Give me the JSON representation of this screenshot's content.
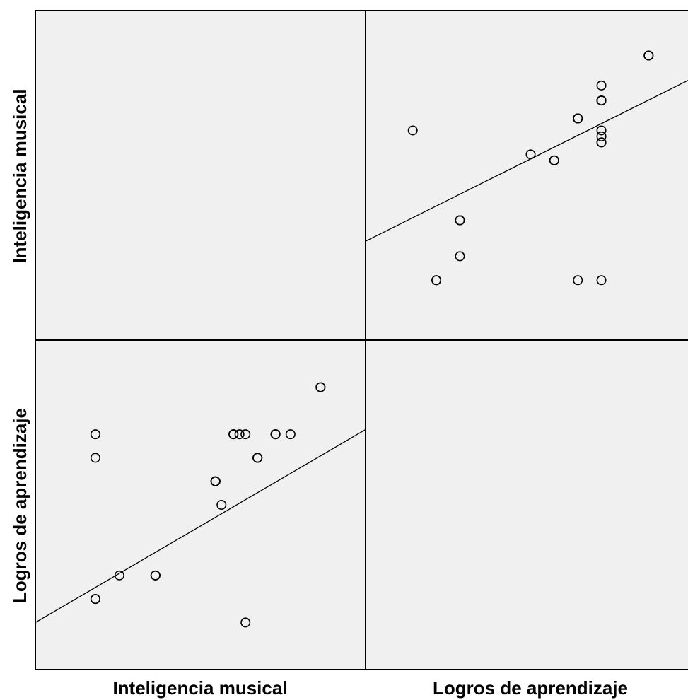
{
  "chart_data": {
    "type": "scatter",
    "variables": [
      "Inteligencia musical",
      "Logros de aprendizaje"
    ],
    "grid": false,
    "colors": {
      "panel_background": "#f0f0f0",
      "marker_stroke": "#000000",
      "fit_line": "#000000"
    },
    "axis_ranges": {
      "Inteligencia musical": [
        -2,
        9
      ],
      "Logros de aprendizaje": [
        -2,
        12
      ]
    },
    "points": [
      {
        "Inteligencia musical": 0,
        "Logros de aprendizaje": 1
      },
      {
        "Inteligencia musical": 0,
        "Logros de aprendizaje": 1
      },
      {
        "Inteligencia musical": 0.8,
        "Logros de aprendizaje": 2
      },
      {
        "Inteligencia musical": 5,
        "Logros de aprendizaje": 0
      },
      {
        "Inteligencia musical": 4,
        "Logros de aprendizaje": 6
      },
      {
        "Inteligencia musical": 4,
        "Logros de aprendizaje": 6
      },
      {
        "Inteligencia musical": 4,
        "Logros de aprendizaje": 6
      },
      {
        "Inteligencia musical": 4,
        "Logros de aprendizaje": 6
      },
      {
        "Inteligencia musical": 5.4,
        "Logros de aprendizaje": 7
      },
      {
        "Inteligencia musical": 5.4,
        "Logros de aprendizaje": 7
      },
      {
        "Inteligencia musical": 5.4,
        "Logros de aprendizaje": 7
      },
      {
        "Inteligencia musical": 5.4,
        "Logros de aprendizaje": 7
      },
      {
        "Inteligencia musical": 5,
        "Logros de aprendizaje": 8
      },
      {
        "Inteligencia musical": 4.8,
        "Logros de aprendizaje": 8
      },
      {
        "Inteligencia musical": 4.6,
        "Logros de aprendizaje": 8
      },
      {
        "Inteligencia musical": 4.6,
        "Logros de aprendizaje": 8
      },
      {
        "Inteligencia musical": 6,
        "Logros de aprendizaje": 8
      },
      {
        "Inteligencia musical": 6,
        "Logros de aprendizaje": 8
      },
      {
        "Inteligencia musical": 6,
        "Logros de aprendizaje": 8
      },
      {
        "Inteligencia musical": 6.5,
        "Logros de aprendizaje": 8
      },
      {
        "Inteligencia musical": 7.5,
        "Logros de aprendizaje": 10
      },
      {
        "Inteligencia musical": 7.5,
        "Logros de aprendizaje": 10
      },
      {
        "Inteligencia musical": 0,
        "Logros de aprendizaje": 7
      },
      {
        "Inteligencia musical": 0,
        "Logros de aprendizaje": 8
      },
      {
        "Inteligencia musical": 2,
        "Logros de aprendizaje": 2
      },
      {
        "Inteligencia musical": 2,
        "Logros de aprendizaje": 2
      },
      {
        "Inteligencia musical": 2,
        "Logros de aprendizaje": 2
      },
      {
        "Inteligencia musical": 4.2,
        "Logros de aprendizaje": 5
      }
    ],
    "fit_lines": [
      {
        "panel": "Logros de aprendizaje vs Inteligencia musical",
        "y_at_x_min": 0,
        "y_at_x_max": 8.2
      },
      {
        "panel": "Inteligencia musical vs Logros de aprendizaje",
        "y_at_x_min": 1.3,
        "y_at_x_max": 6.8
      }
    ]
  }
}
